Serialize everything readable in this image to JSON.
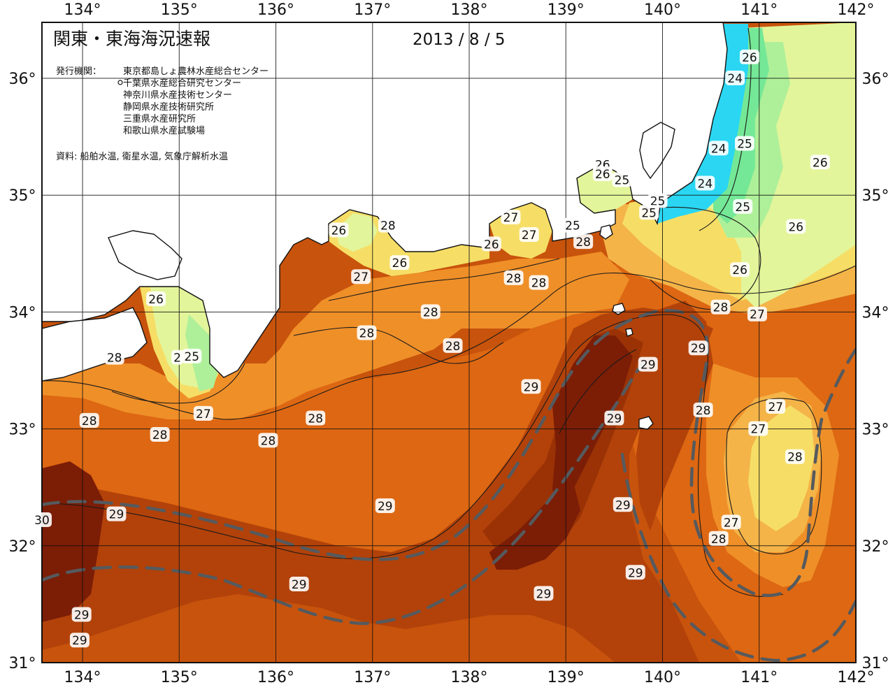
{
  "title": "関東・東海海況速報",
  "date": "2013 / 8 / 5",
  "publisher_label": "発行機関：",
  "publishers": [
    "東京都島しょ農林水産総合センター",
    "千葉県水産総合研究センター",
    "神奈川県水産技術センター",
    "静岡県水産技術研究所",
    "三重県水産研究所",
    "和歌山県水産試験場"
  ],
  "source": "資料: 船舶水温, 衛星水温, 気象庁解析水温",
  "lon_labels": [
    "134°",
    "135°",
    "136°",
    "137°",
    "138°",
    "139°",
    "140°",
    "141°",
    "142°"
  ],
  "lat_labels": [
    "36°",
    "35°",
    "34°",
    "33°",
    "32°",
    "31°"
  ],
  "isotherm_labels": [
    {
      "text": "26",
      "lon": 140.9,
      "lat": 36.18
    },
    {
      "text": "24",
      "lon": 140.75,
      "lat": 36.0
    },
    {
      "text": "24",
      "lon": 140.58,
      "lat": 35.4
    },
    {
      "text": "25",
      "lon": 140.85,
      "lat": 35.44
    },
    {
      "text": "26",
      "lon": 141.63,
      "lat": 35.28
    },
    {
      "text": "24",
      "lon": 140.44,
      "lat": 35.1
    },
    {
      "text": "25",
      "lon": 140.83,
      "lat": 34.9
    },
    {
      "text": "26",
      "lon": 141.38,
      "lat": 34.73
    },
    {
      "text": "26",
      "lon": 140.8,
      "lat": 34.36
    },
    {
      "text": "28",
      "lon": 140.6,
      "lat": 34.04
    },
    {
      "text": "27",
      "lon": 140.98,
      "lat": 33.98
    },
    {
      "text": "25",
      "lon": 139.95,
      "lat": 34.95
    },
    {
      "text": "25",
      "lon": 139.86,
      "lat": 34.85
    },
    {
      "text": "26",
      "lon": 139.38,
      "lat": 35.26
    },
    {
      "text": "26",
      "lon": 139.38,
      "lat": 35.18
    },
    {
      "text": "25",
      "lon": 139.58,
      "lat": 35.13
    },
    {
      "text": "25",
      "lon": 139.07,
      "lat": 34.74
    },
    {
      "text": "28",
      "lon": 139.18,
      "lat": 34.6
    },
    {
      "text": "27",
      "lon": 138.43,
      "lat": 34.81
    },
    {
      "text": "27",
      "lon": 138.62,
      "lat": 34.66
    },
    {
      "text": "26",
      "lon": 138.23,
      "lat": 34.58
    },
    {
      "text": "28",
      "lon": 138.46,
      "lat": 34.29
    },
    {
      "text": "28",
      "lon": 138.72,
      "lat": 34.25
    },
    {
      "text": "26",
      "lon": 136.65,
      "lat": 34.7
    },
    {
      "text": "28",
      "lon": 137.16,
      "lat": 34.74
    },
    {
      "text": "26",
      "lon": 137.28,
      "lat": 34.42
    },
    {
      "text": "27",
      "lon": 136.88,
      "lat": 34.3
    },
    {
      "text": "28",
      "lon": 137.6,
      "lat": 34.0
    },
    {
      "text": "28",
      "lon": 136.94,
      "lat": 33.82
    },
    {
      "text": "28",
      "lon": 137.83,
      "lat": 33.71
    },
    {
      "text": "26",
      "lon": 134.76,
      "lat": 34.11
    },
    {
      "text": "28",
      "lon": 134.33,
      "lat": 33.61
    },
    {
      "text": "2",
      "lon": 134.98,
      "lat": 33.61
    },
    {
      "text": "25",
      "lon": 135.13,
      "lat": 33.62
    },
    {
      "text": "27",
      "lon": 135.25,
      "lat": 33.13
    },
    {
      "text": "28",
      "lon": 134.07,
      "lat": 33.07
    },
    {
      "text": "28",
      "lon": 134.8,
      "lat": 32.95
    },
    {
      "text": "28",
      "lon": 135.92,
      "lat": 32.9
    },
    {
      "text": "28",
      "lon": 136.41,
      "lat": 33.09
    },
    {
      "text": "29",
      "lon": 138.64,
      "lat": 33.36
    },
    {
      "text": "29",
      "lon": 139.85,
      "lat": 33.55
    },
    {
      "text": "29",
      "lon": 140.37,
      "lat": 33.69
    },
    {
      "text": "29",
      "lon": 139.5,
      "lat": 33.09
    },
    {
      "text": "28",
      "lon": 140.42,
      "lat": 33.16
    },
    {
      "text": "27",
      "lon": 141.17,
      "lat": 33.19
    },
    {
      "text": "27",
      "lon": 140.99,
      "lat": 33.0
    },
    {
      "text": "28",
      "lon": 141.37,
      "lat": 32.76
    },
    {
      "text": "30",
      "lon": 133.58,
      "lat": 32.22
    },
    {
      "text": "29",
      "lon": 134.35,
      "lat": 32.27
    },
    {
      "text": "29",
      "lon": 137.13,
      "lat": 32.34
    },
    {
      "text": "29",
      "lon": 139.59,
      "lat": 32.35
    },
    {
      "text": "27",
      "lon": 140.71,
      "lat": 32.2
    },
    {
      "text": "28",
      "lon": 140.58,
      "lat": 32.06
    },
    {
      "text": "29",
      "lon": 139.72,
      "lat": 31.77
    },
    {
      "text": "29",
      "lon": 136.24,
      "lat": 31.67
    },
    {
      "text": "29",
      "lon": 138.77,
      "lat": 31.59
    },
    {
      "text": "29",
      "lon": 133.99,
      "lat": 31.41
    },
    {
      "text": "29",
      "lon": 133.97,
      "lat": 31.19
    }
  ],
  "colors": {
    "t30": "#7c1d06",
    "t29": "#9a3205",
    "t29b": "#b2420a",
    "t28a": "#c8530c",
    "t28b": "#dd6712",
    "t27": "#ef8f28",
    "t26": "#f4b448",
    "t25": "#f6de66",
    "t24": "#e2f59a",
    "t23": "#aef099",
    "t22": "#74e896",
    "t21": "#52d8ea",
    "t20": "#2ad6f2",
    "land": "#ffffff",
    "kuroshio": "#555a5e"
  }
}
